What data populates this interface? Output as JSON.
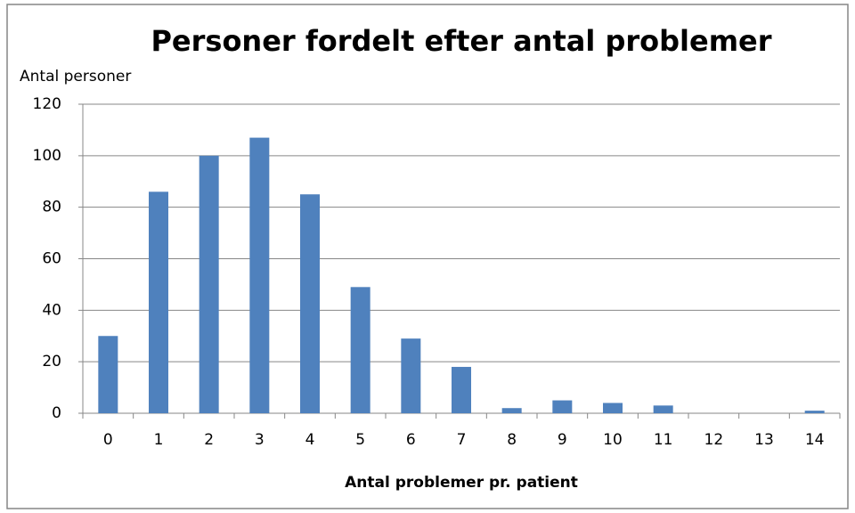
{
  "chart_data": {
    "type": "bar",
    "title": "Personer fordelt efter antal problemer",
    "y_label": "Antal personer",
    "x_label": "Antal problemer pr. patient",
    "categories": [
      "0",
      "1",
      "2",
      "3",
      "4",
      "5",
      "6",
      "7",
      "8",
      "9",
      "10",
      "11",
      "12",
      "13",
      "14"
    ],
    "values": [
      30,
      86,
      100,
      107,
      85,
      49,
      29,
      18,
      2,
      5,
      4,
      3,
      0,
      0,
      1
    ],
    "color": "#4f81bd",
    "ylim": [
      0,
      120
    ],
    "yticks": [
      0,
      20,
      40,
      60,
      80,
      100,
      120
    ],
    "grid": true
  }
}
